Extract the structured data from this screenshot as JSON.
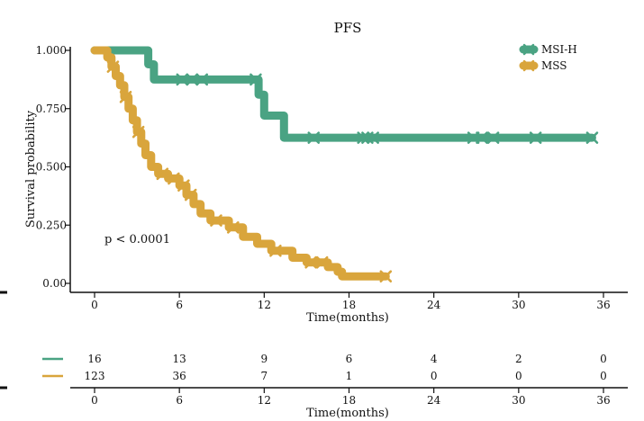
{
  "chart_data": {
    "type": "line",
    "title": "PFS",
    "xlabel": "Time(months)",
    "ylabel": "Survival probability",
    "xlim": [
      0,
      36
    ],
    "ylim": [
      0,
      1
    ],
    "x_ticks": [
      "0",
      "6",
      "12",
      "18",
      "24",
      "30",
      "36"
    ],
    "y_ticks": [
      "0.00",
      "0.250",
      "0.500",
      "0.750",
      "1.000"
    ],
    "annotation": "p < 0.0001",
    "legend_position": "top-right",
    "series": [
      {
        "name": "MSI-H",
        "color": "#4aa383",
        "steps": [
          [
            0,
            1.0
          ],
          [
            3.8,
            1.0
          ],
          [
            3.8,
            0.94
          ],
          [
            4.2,
            0.94
          ],
          [
            4.2,
            0.875
          ],
          [
            11.6,
            0.875
          ],
          [
            11.6,
            0.81
          ],
          [
            12.0,
            0.81
          ],
          [
            12.0,
            0.72
          ],
          [
            13.4,
            0.72
          ],
          [
            13.4,
            0.625
          ],
          [
            35.2,
            0.625
          ]
        ],
        "censored_x": [
          6.2,
          6.9,
          7.6,
          11.4,
          15.5,
          19.0,
          19.3,
          19.7,
          26.8,
          27.4,
          28.2,
          31.2,
          35.2
        ]
      },
      {
        "name": "MSS",
        "color": "#d9a53c",
        "steps": [
          [
            0,
            1.0
          ],
          [
            0.9,
            1.0
          ],
          [
            0.9,
            0.97
          ],
          [
            1.2,
            0.97
          ],
          [
            1.2,
            0.93
          ],
          [
            1.5,
            0.93
          ],
          [
            1.5,
            0.89
          ],
          [
            1.8,
            0.89
          ],
          [
            1.8,
            0.85
          ],
          [
            2.1,
            0.85
          ],
          [
            2.1,
            0.8
          ],
          [
            2.4,
            0.8
          ],
          [
            2.4,
            0.75
          ],
          [
            2.7,
            0.75
          ],
          [
            2.7,
            0.7
          ],
          [
            3.0,
            0.7
          ],
          [
            3.0,
            0.65
          ],
          [
            3.3,
            0.65
          ],
          [
            3.3,
            0.6
          ],
          [
            3.6,
            0.6
          ],
          [
            3.6,
            0.55
          ],
          [
            4.0,
            0.55
          ],
          [
            4.0,
            0.5
          ],
          [
            4.5,
            0.5
          ],
          [
            4.5,
            0.47
          ],
          [
            5.2,
            0.47
          ],
          [
            5.2,
            0.45
          ],
          [
            6.0,
            0.45
          ],
          [
            6.0,
            0.42
          ],
          [
            6.5,
            0.42
          ],
          [
            6.5,
            0.38
          ],
          [
            7.0,
            0.38
          ],
          [
            7.0,
            0.34
          ],
          [
            7.5,
            0.34
          ],
          [
            7.5,
            0.3
          ],
          [
            8.2,
            0.3
          ],
          [
            8.2,
            0.27
          ],
          [
            9.5,
            0.27
          ],
          [
            9.5,
            0.24
          ],
          [
            10.5,
            0.24
          ],
          [
            10.5,
            0.2
          ],
          [
            11.5,
            0.2
          ],
          [
            11.5,
            0.17
          ],
          [
            12.5,
            0.17
          ],
          [
            12.5,
            0.14
          ],
          [
            14.0,
            0.14
          ],
          [
            14.0,
            0.11
          ],
          [
            15.0,
            0.11
          ],
          [
            15.0,
            0.09
          ],
          [
            16.5,
            0.09
          ],
          [
            16.5,
            0.07
          ],
          [
            17.2,
            0.07
          ],
          [
            17.2,
            0.05
          ],
          [
            17.5,
            0.05
          ],
          [
            17.5,
            0.03
          ],
          [
            20.6,
            0.03
          ]
        ],
        "censored_x": [
          1.3,
          2.2,
          3.1,
          4.8,
          5.6,
          6.3,
          6.8,
          8.6,
          9.8,
          12.8,
          15.3,
          16.1,
          20.6
        ]
      }
    ],
    "risk_table": {
      "xlabel": "Time(months)",
      "x_ticks": [
        "0",
        "6",
        "12",
        "18",
        "24",
        "30",
        "36"
      ],
      "rows": [
        {
          "name": "MSI-H",
          "color": "#4aa383",
          "counts": [
            "16",
            "13",
            "9",
            "6",
            "4",
            "2",
            "0"
          ]
        },
        {
          "name": "MSS",
          "color": "#d9a53c",
          "counts": [
            "123",
            "36",
            "7",
            "1",
            "0",
            "0",
            "0"
          ]
        }
      ]
    }
  }
}
